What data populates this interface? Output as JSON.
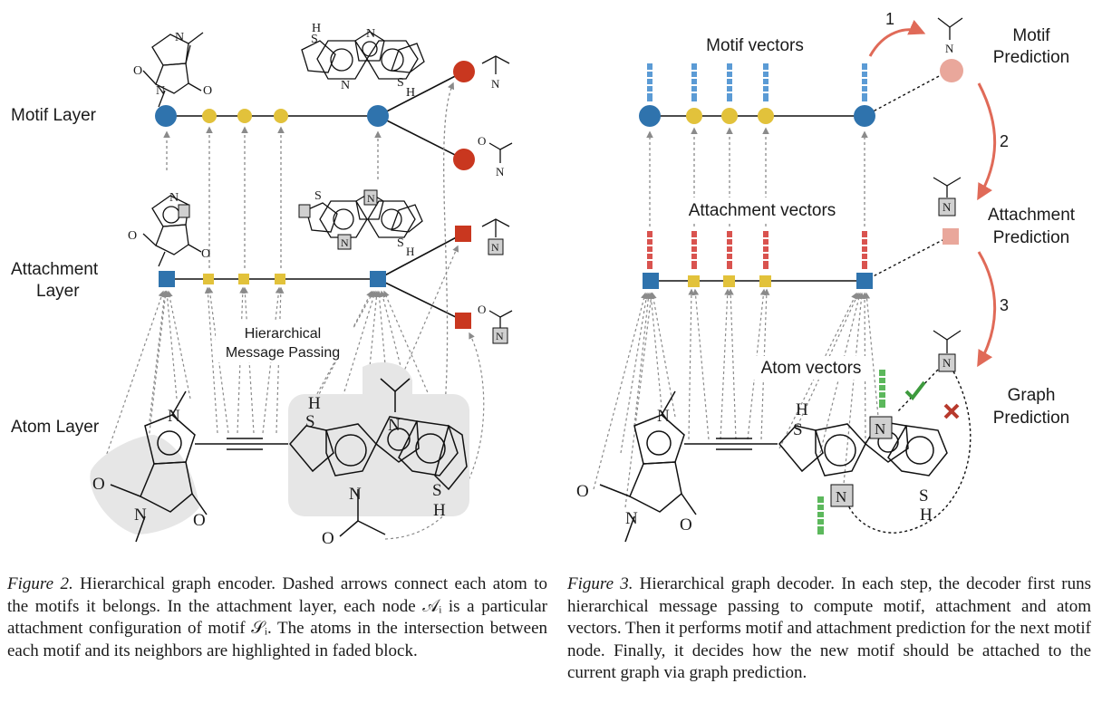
{
  "figure2": {
    "layer_labels": {
      "motif": "Motif Layer",
      "attachment_line1": "Attachment",
      "attachment_line2": "Layer",
      "atom": "Atom Layer"
    },
    "hmp_line1": "Hierarchical",
    "hmp_line2": "Message Passing",
    "caption_label": "Figure 2.",
    "caption_text": "Hierarchical graph encoder. Dashed arrows connect each atom to the motifs it belongs. In the attachment layer, each node 𝒜ᵢ is a particular attachment configuration of motif 𝒮ᵢ. The atoms in the intersection between each motif and its neighbors are highlighted in faded block."
  },
  "figure3": {
    "motif_vectors": "Motif vectors",
    "attachment_vectors": "Attachment vectors",
    "atom_vectors": "Atom vectors",
    "step1": "1",
    "step2": "2",
    "step3": "3",
    "motif_pred_line1": "Motif",
    "motif_pred_line2": "Prediction",
    "attach_pred_line1": "Attachment",
    "attach_pred_line2": "Prediction",
    "graph_pred_line1": "Graph",
    "graph_pred_line2": "Prediction",
    "caption_label": "Figure 3.",
    "caption_text": "Hierarchical graph decoder. In each step, the decoder first runs hierarchical message passing to compute motif, attachment and atom vectors. Then it performs motif and attachment prediction for the next motif node. Finally, it decides how the new motif should be attached to the current graph via graph prediction."
  },
  "atoms": {
    "N": "N",
    "O": "O",
    "S": "S",
    "H": "H"
  },
  "colors": {
    "blue_node": "#2f73ad",
    "yellow_node": "#e2c23b",
    "red_node": "#c9371f",
    "pink_node": "#e9a79b",
    "arrow_red": "#e06a58",
    "check_green": "#3d9a3d",
    "cross_red": "#b8392c",
    "highlight_gray": "#e6e6e6"
  },
  "icons": [
    "check-icon",
    "cross-icon"
  ]
}
